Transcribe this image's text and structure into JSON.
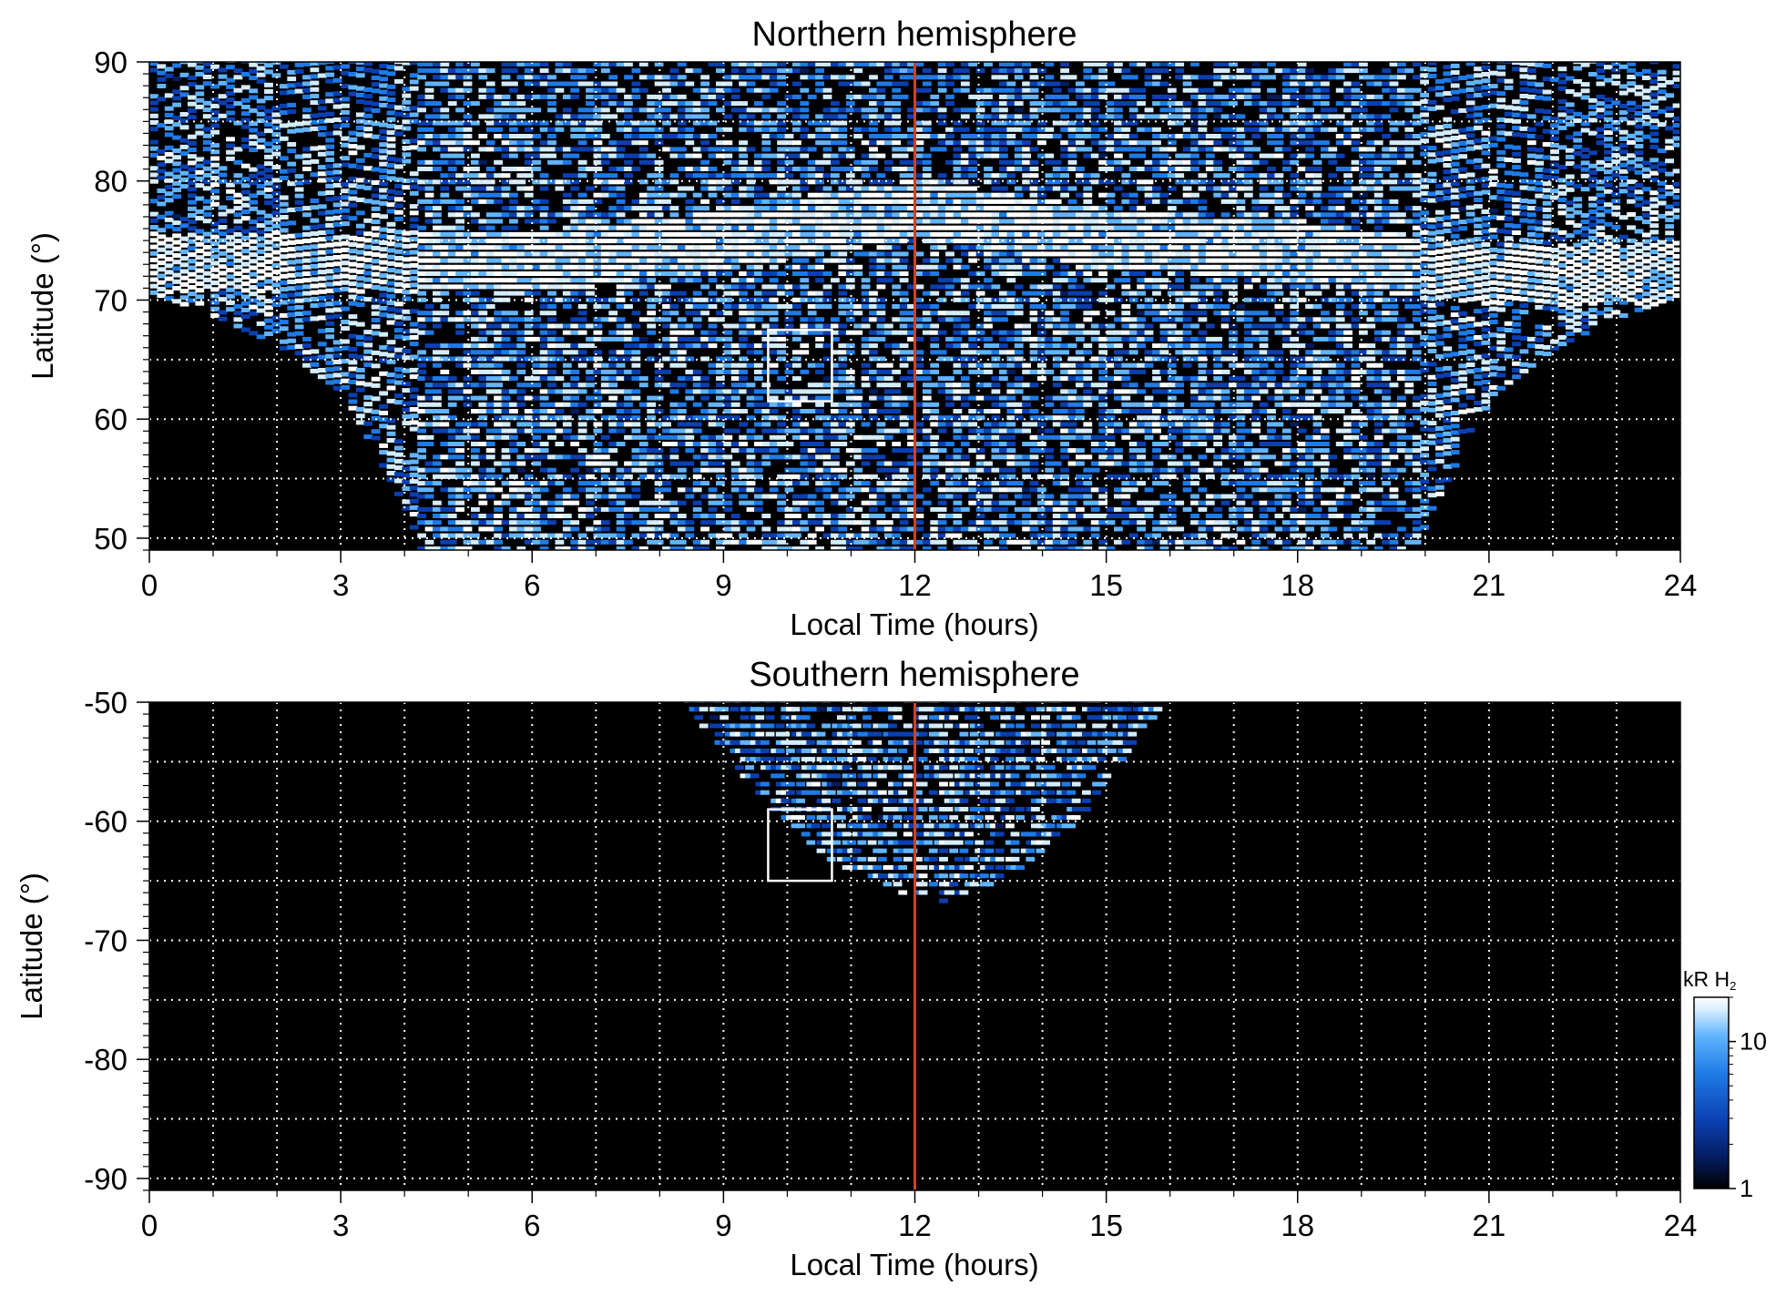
{
  "chart_data": [
    {
      "type": "heatmap",
      "title": "Northern hemisphere",
      "xlabel": "Local Time (hours)",
      "ylabel": "Latitude (°)",
      "xlim": [
        0,
        24
      ],
      "ylim": [
        49,
        90
      ],
      "x_ticks": [
        0,
        3,
        6,
        9,
        12,
        15,
        18,
        21,
        24
      ],
      "x_tick_labels": [
        "0",
        "3",
        "6",
        "9",
        "12",
        "15",
        "18",
        "21",
        "24"
      ],
      "y_ticks": [
        50,
        60,
        70,
        80,
        90
      ],
      "y_tick_labels": [
        "50",
        "60",
        "70",
        "80",
        "90"
      ],
      "grid": {
        "on": true,
        "style": "dotted",
        "color": "#ffffff",
        "x_step_hours": 1,
        "y_step_deg": 5
      },
      "noon_line": {
        "x": 12,
        "color": "#d2401e"
      },
      "highlight_box": {
        "x": [
          9.7,
          10.7
        ],
        "y": [
          61.5,
          67.5
        ],
        "color": "#ffffff"
      },
      "coverage": {
        "equatorward_boundary_deg": {
          "0": 70.5,
          "1": 68.5,
          "2": 66,
          "3": 62,
          "4": 52,
          "4.2": 49,
          "19.8": 49,
          "20": 52,
          "21": 62,
          "22": 66,
          "23": 68.5,
          "24": 70.5
        }
      },
      "auroral_oval_peak_latitude_deg": {
        "6": 73,
        "9": 75,
        "12": 77.5,
        "15": 75,
        "18": 74,
        "21": 72
      }
    },
    {
      "type": "heatmap",
      "title": "Southern hemisphere",
      "xlabel": "Local Time (hours)",
      "ylabel": "Latitude (°)",
      "xlim": [
        0,
        24
      ],
      "ylim": [
        -91,
        -50
      ],
      "x_ticks": [
        0,
        3,
        6,
        9,
        12,
        15,
        18,
        21,
        24
      ],
      "x_tick_labels": [
        "0",
        "3",
        "6",
        "9",
        "12",
        "15",
        "18",
        "21",
        "24"
      ],
      "y_ticks": [
        -50,
        -60,
        -70,
        -80,
        -90
      ],
      "y_tick_labels": [
        "-50",
        "-60",
        "-70",
        "-80",
        "-90"
      ],
      "grid": {
        "on": true,
        "style": "dotted",
        "color": "#ffffff",
        "x_step_hours": 1,
        "y_step_deg": 5
      },
      "noon_line": {
        "x": 12,
        "color": "#d2401e"
      },
      "highlight_box": {
        "x": [
          9.7,
          10.7
        ],
        "y": [
          -65,
          -59
        ],
        "color": "#ffffff"
      },
      "coverage": {
        "local_time_range": [
          8.3,
          15.9
        ],
        "poleward_limit_deg": {
          "8.3": -50,
          "9.5": -58,
          "10.5": -63,
          "11.5": -66,
          "12": -66.5,
          "12.5": -67,
          "13.5": -64.5,
          "14.5": -60,
          "15.9": -50
        }
      }
    }
  ],
  "colorbar": {
    "title_main": "kR H",
    "title_sub": "2",
    "scale": "log",
    "range": [
      1,
      20
    ],
    "ticks": [
      1,
      10
    ],
    "tick_labels": [
      "1",
      "10"
    ],
    "colors": [
      "#000000",
      "#041a5a",
      "#0b3fb0",
      "#1e7ae6",
      "#62b4ff",
      "#d4ecff",
      "#ffffff"
    ]
  }
}
